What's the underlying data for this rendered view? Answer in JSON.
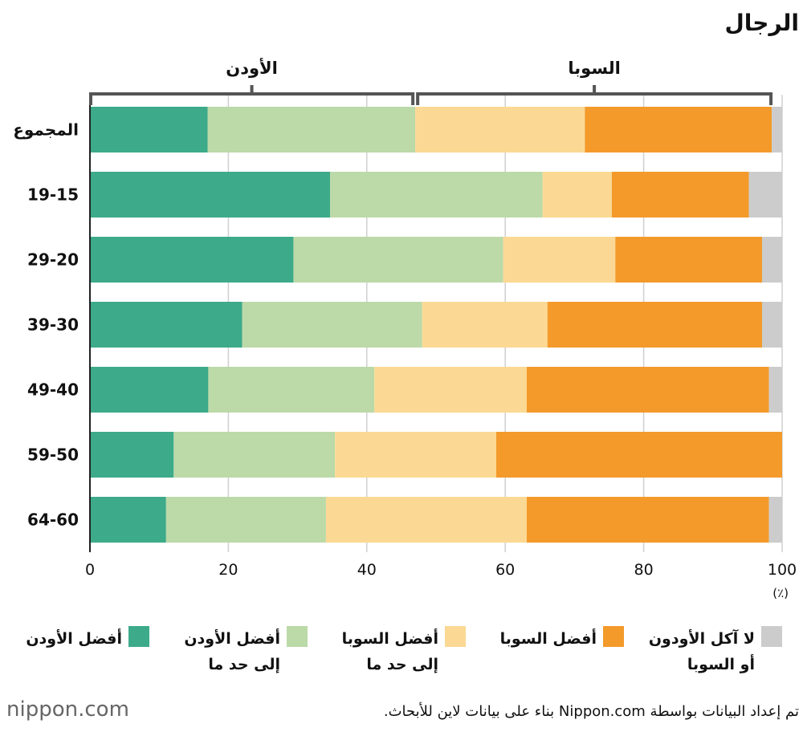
{
  "chart_data": {
    "type": "stacked-barh",
    "title": "الرجال",
    "annotations": [
      "الأودن",
      "السوبا"
    ],
    "categories": [
      "المجموع",
      "19-15",
      "29-20",
      "39-30",
      "49-40",
      "59-50",
      "64-60"
    ],
    "series": [
      {
        "name": "أفضل الأودن",
        "color": "#3daa8a",
        "values": [
          17,
          34.7,
          29.4,
          22,
          17.1,
          12.1,
          11
        ]
      },
      {
        "name": "أفضل الأودن\nإلى حد ما",
        "color": "#bcd9a8",
        "values": [
          30,
          30.7,
          30.3,
          26,
          24,
          23.3,
          23.1
        ]
      },
      {
        "name": "أفضل السوبا\nإلى حد ما",
        "color": "#fbd994",
        "values": [
          24.5,
          10,
          16.2,
          18.1,
          22,
          23.3,
          29
        ]
      },
      {
        "name": "أفضل السوبا",
        "color": "#f39a2b",
        "values": [
          27,
          19.8,
          21.2,
          31,
          35,
          41.3,
          35
        ]
      },
      {
        "name": "لا آكل الأودون\nأو السوبا",
        "color": "#cccccc",
        "values": [
          1.5,
          4.8,
          2.9,
          2.9,
          1.9,
          0,
          1.9
        ]
      }
    ],
    "xlim": [
      0,
      100
    ],
    "xticks": [
      0,
      20,
      40,
      60,
      80,
      100
    ],
    "x_unit": "(٪)",
    "grid": true,
    "source": "تم إعداد البيانات بواسطة Nippon.com بناء على بيانات لاين للأبحاث.",
    "logo": "nippon.com"
  }
}
